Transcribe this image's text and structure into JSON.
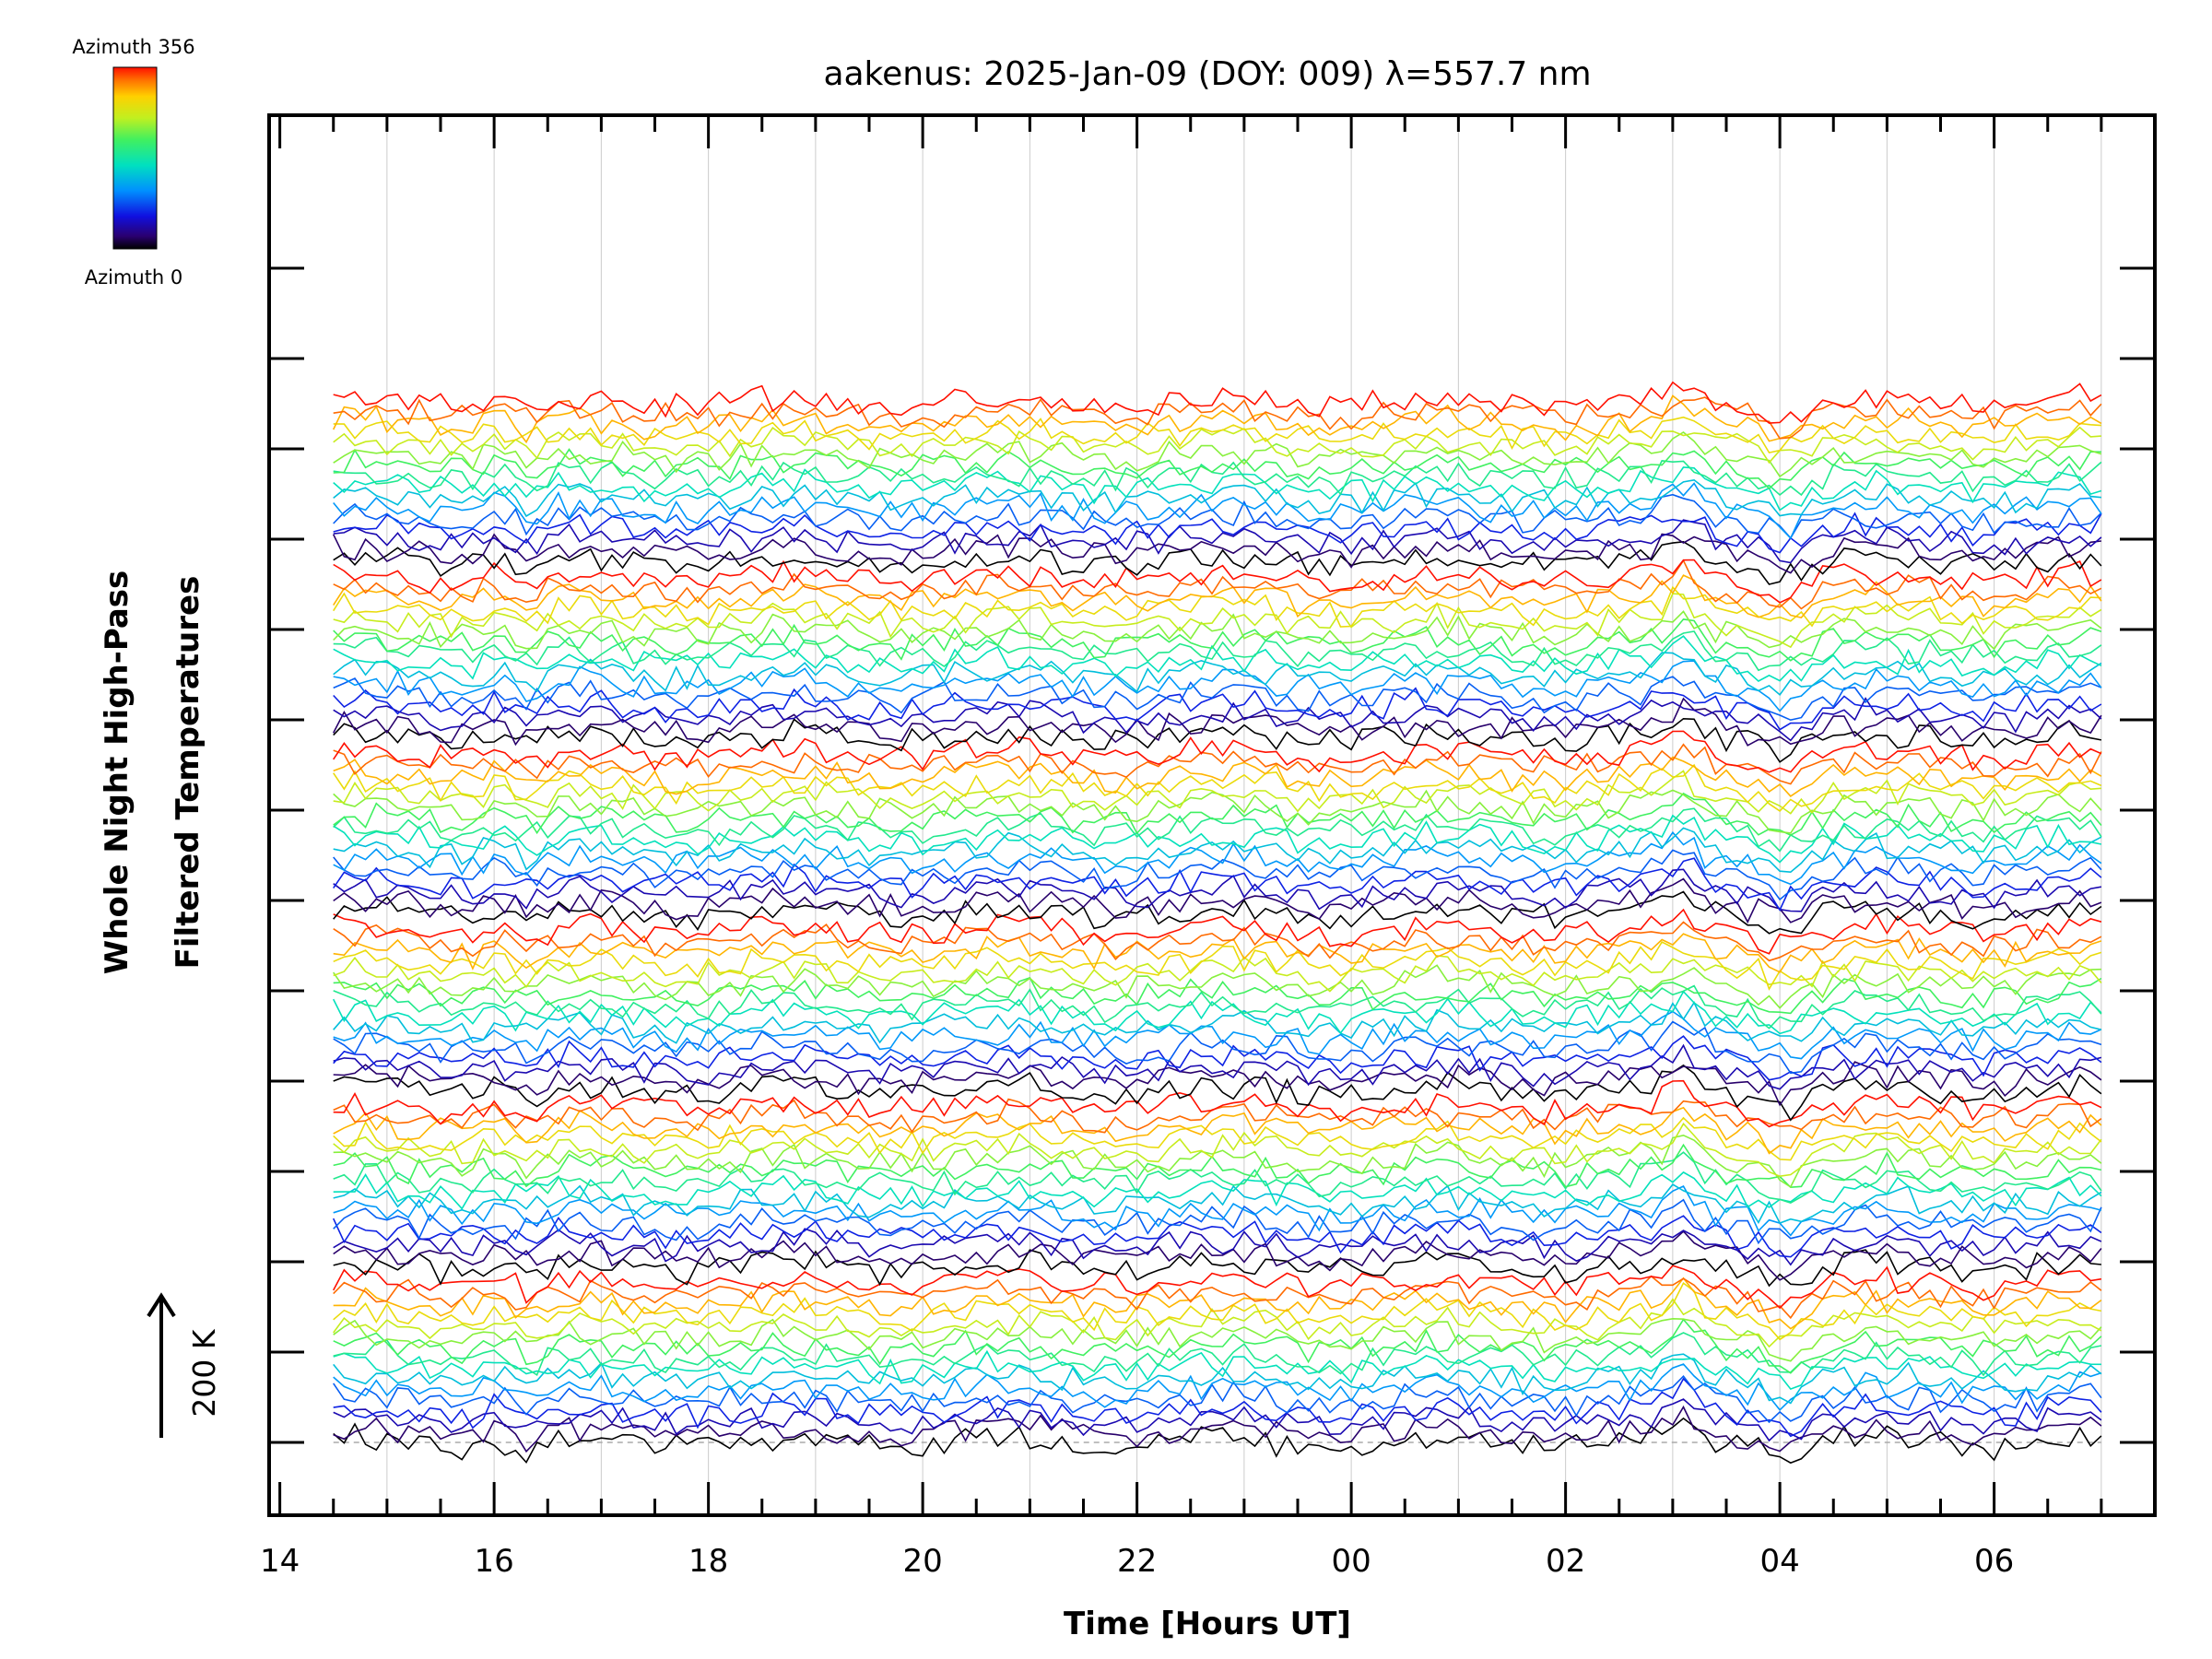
{
  "chart_data": {
    "type": "line",
    "title": "aakenus: 2025-Jan-09 (DOY: 009) λ=557.7 nm",
    "xlabel": "Time [Hours UT]",
    "ylabel_lines": [
      "Whole Night High-Pass",
      "Filtered Temperatures"
    ],
    "x_ticks": [
      {
        "label": "14",
        "hour": 14
      },
      {
        "label": "16",
        "hour": 16
      },
      {
        "label": "18",
        "hour": 18
      },
      {
        "label": "20",
        "hour": 20
      },
      {
        "label": "22",
        "hour": 22
      },
      {
        "label": "00",
        "hour": 24
      },
      {
        "label": "02",
        "hour": 26
      },
      {
        "label": "04",
        "hour": 28
      },
      {
        "label": "06",
        "hour": 30
      }
    ],
    "xlim": [
      13.9,
      31.5
    ],
    "data_range_hours": [
      14.5,
      31.0
    ],
    "gap_hours": [
      1.7,
      3.0
    ],
    "colorbar": {
      "top_label": "Azimuth  356",
      "bottom_label": "Azimuth  0",
      "colormap": "rainbow",
      "range": [
        0,
        356
      ]
    },
    "scale_bar": {
      "label": "200 K",
      "kelvin": 200
    },
    "stacks": 6,
    "series_per_stack": 16,
    "offset_steps_per_series": 0.5
  },
  "colors": {
    "axis": "#000000",
    "grid": "#cccccc",
    "baseline": "#aaaaaa",
    "background": "#ffffff"
  }
}
